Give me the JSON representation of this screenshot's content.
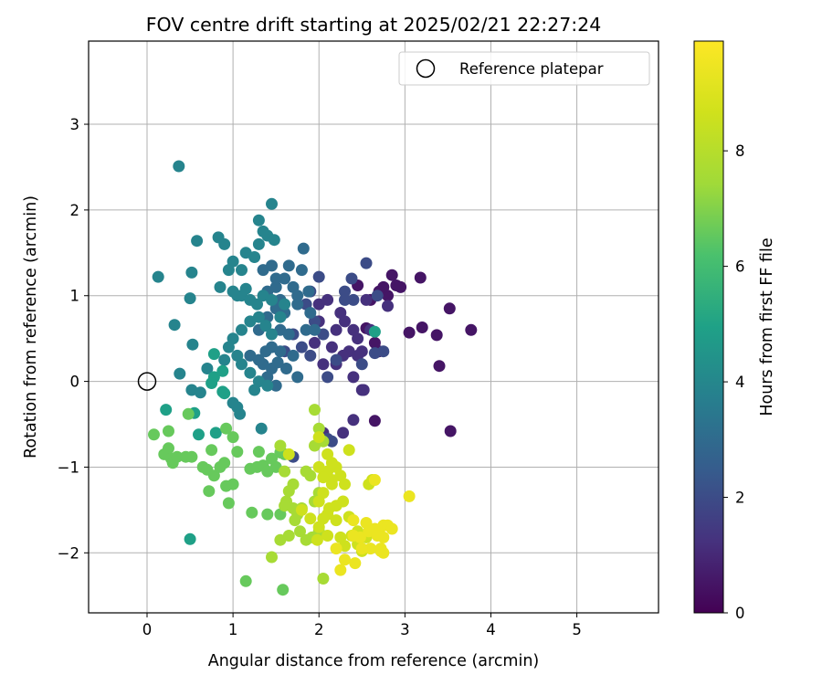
{
  "chart_data": {
    "type": "scatter",
    "title": "FOV centre drift starting at 2025/02/21 22:27:24",
    "xlabel": "Angular distance from reference (arcmin)",
    "ylabel": "Rotation from reference (arcmin)",
    "xlim": [
      -0.68,
      5.95
    ],
    "ylim": [
      -2.7,
      3.97
    ],
    "xticks": [
      0,
      1,
      2,
      3,
      4,
      5
    ],
    "yticks": [
      -2,
      -1,
      0,
      1,
      2,
      3
    ],
    "grid": true,
    "legend": {
      "placement": "top-right",
      "entries": [
        "Reference platepar"
      ]
    },
    "reference_point": {
      "x": 0,
      "y": 0
    },
    "colorbar": {
      "label": "Hours from first FF file",
      "colormap": "viridis",
      "range": [
        0,
        9.9
      ],
      "ticks": [
        0,
        2,
        4,
        6,
        8
      ]
    },
    "series": [
      {
        "time_hours": 0.5,
        "points": [
          [
            3.18,
            1.21
          ],
          [
            2.95,
            1.1
          ],
          [
            2.85,
            1.24
          ],
          [
            3.05,
            0.57
          ],
          [
            3.2,
            0.63
          ],
          [
            3.37,
            0.54
          ],
          [
            3.52,
            0.85
          ],
          [
            3.77,
            0.6
          ],
          [
            3.4,
            0.18
          ],
          [
            3.53,
            -0.58
          ],
          [
            2.65,
            -0.46
          ],
          [
            2.55,
            0.62
          ],
          [
            2.7,
            0.35
          ],
          [
            2.8,
            1.0
          ],
          [
            2.9,
            1.12
          ],
          [
            2.75,
            1.1
          ],
          [
            2.6,
            0.95
          ],
          [
            2.7,
            1.05
          ],
          [
            2.45,
            1.12
          ],
          [
            2.65,
            0.45
          ]
        ]
      },
      {
        "time_hours": 1.2,
        "points": [
          [
            2.0,
            0.9
          ],
          [
            2.1,
            0.95
          ],
          [
            2.25,
            0.8
          ],
          [
            2.2,
            0.6
          ],
          [
            2.3,
            0.7
          ],
          [
            2.45,
            0.5
          ],
          [
            2.5,
            0.35
          ],
          [
            2.4,
            0.6
          ],
          [
            2.35,
            0.35
          ],
          [
            2.55,
            0.95
          ],
          [
            2.6,
            0.6
          ],
          [
            2.15,
            0.4
          ],
          [
            2.0,
            0.7
          ],
          [
            1.95,
            0.45
          ],
          [
            2.05,
            0.2
          ],
          [
            2.2,
            0.2
          ],
          [
            2.28,
            0.3
          ],
          [
            2.4,
            0.05
          ],
          [
            2.5,
            -0.1
          ],
          [
            2.05,
            -0.6
          ],
          [
            2.28,
            -0.6
          ],
          [
            2.4,
            -0.45
          ],
          [
            2.52,
            -0.1
          ],
          [
            2.45,
            0.3
          ],
          [
            2.8,
            0.88
          ]
        ]
      },
      {
        "time_hours": 2.0,
        "points": [
          [
            2.15,
            -0.7
          ],
          [
            2.1,
            -0.67
          ],
          [
            2.38,
            1.2
          ],
          [
            2.55,
            1.38
          ],
          [
            2.68,
            1.0
          ],
          [
            2.3,
            1.05
          ],
          [
            2.4,
            0.95
          ],
          [
            2.0,
            1.22
          ],
          [
            1.9,
            1.05
          ],
          [
            1.85,
            0.9
          ],
          [
            1.7,
            0.55
          ],
          [
            1.8,
            0.4
          ],
          [
            1.6,
            0.35
          ],
          [
            1.95,
            0.7
          ],
          [
            2.05,
            0.55
          ],
          [
            2.2,
            0.25
          ],
          [
            2.1,
            0.05
          ],
          [
            2.3,
            0.95
          ],
          [
            1.7,
            -0.88
          ],
          [
            2.65,
            0.33
          ],
          [
            2.5,
            0.2
          ],
          [
            1.9,
            0.3
          ],
          [
            2.75,
            0.35
          ]
        ]
      },
      {
        "time_hours": 3.0,
        "points": [
          [
            1.4,
            1.05
          ],
          [
            1.5,
            1.1
          ],
          [
            1.55,
            0.95
          ],
          [
            1.6,
            1.2
          ],
          [
            1.7,
            1.1
          ],
          [
            1.8,
            1.3
          ],
          [
            1.75,
            1.0
          ],
          [
            1.5,
            0.85
          ],
          [
            1.4,
            0.75
          ],
          [
            1.6,
            0.8
          ],
          [
            1.55,
            0.6
          ],
          [
            1.3,
            0.6
          ],
          [
            1.7,
            0.3
          ],
          [
            1.85,
            0.6
          ],
          [
            1.65,
            0.55
          ],
          [
            1.45,
            0.4
          ],
          [
            1.55,
            0.35
          ],
          [
            1.75,
            0.05
          ],
          [
            1.35,
            0.2
          ],
          [
            1.4,
            0.05
          ],
          [
            1.2,
            0.3
          ],
          [
            1.3,
            0.25
          ],
          [
            1.45,
            0.15
          ],
          [
            1.5,
            -0.05
          ],
          [
            1.62,
            0.15
          ],
          [
            1.38,
            0.35
          ],
          [
            1.52,
            0.22
          ],
          [
            1.35,
            1.3
          ],
          [
            1.45,
            1.35
          ],
          [
            1.5,
            1.2
          ],
          [
            1.65,
            1.35
          ],
          [
            1.82,
            1.55
          ],
          [
            1.75,
            0.9
          ],
          [
            1.9,
            0.8
          ],
          [
            1.88,
            1.05
          ],
          [
            1.95,
            0.6
          ]
        ]
      },
      {
        "time_hours": 3.9,
        "points": [
          [
            0.37,
            2.51
          ],
          [
            1.45,
            2.07
          ],
          [
            1.3,
            1.88
          ],
          [
            1.4,
            1.7
          ],
          [
            1.48,
            1.65
          ],
          [
            1.3,
            1.6
          ],
          [
            1.35,
            1.75
          ],
          [
            1.25,
            1.45
          ],
          [
            1.15,
            1.5
          ],
          [
            1.1,
            1.3
          ],
          [
            1.0,
            1.4
          ],
          [
            0.9,
            1.6
          ],
          [
            0.83,
            1.68
          ],
          [
            0.95,
            1.3
          ],
          [
            0.85,
            1.1
          ],
          [
            1.0,
            1.05
          ],
          [
            1.05,
            1.0
          ],
          [
            1.1,
            1.0
          ],
          [
            1.15,
            1.08
          ],
          [
            1.2,
            0.95
          ],
          [
            1.28,
            0.9
          ],
          [
            1.35,
            1.0
          ],
          [
            1.3,
            0.75
          ],
          [
            1.2,
            0.7
          ],
          [
            1.1,
            0.6
          ],
          [
            1.0,
            0.5
          ],
          [
            0.95,
            0.4
          ],
          [
            0.9,
            0.25
          ],
          [
            1.05,
            0.3
          ],
          [
            1.1,
            0.2
          ],
          [
            1.2,
            0.1
          ],
          [
            1.3,
            0.0
          ],
          [
            1.25,
            -0.1
          ],
          [
            1.4,
            -0.05
          ],
          [
            1.38,
            0.65
          ],
          [
            1.45,
            0.55
          ],
          [
            0.58,
            1.64
          ],
          [
            0.13,
            1.22
          ],
          [
            0.52,
            1.27
          ],
          [
            0.5,
            0.97
          ],
          [
            0.32,
            0.66
          ],
          [
            0.53,
            0.43
          ],
          [
            0.38,
            0.09
          ],
          [
            0.52,
            -0.1
          ],
          [
            0.62,
            -0.13
          ],
          [
            0.7,
            0.15
          ],
          [
            1.0,
            -0.25
          ],
          [
            1.05,
            -0.3
          ],
          [
            1.08,
            -0.38
          ],
          [
            1.33,
            -0.55
          ],
          [
            1.45,
            0.95
          ],
          [
            1.55,
            0.75
          ],
          [
            1.6,
            0.9
          ]
        ]
      },
      {
        "time_hours": 4.9,
        "points": [
          [
            0.22,
            -0.33
          ],
          [
            0.78,
            0.32
          ],
          [
            0.78,
            0.05
          ],
          [
            0.75,
            -0.02
          ],
          [
            0.88,
            0.12
          ],
          [
            0.88,
            -0.12
          ],
          [
            0.9,
            -0.14
          ],
          [
            2.65,
            0.58
          ],
          [
            0.5,
            -1.84
          ],
          [
            0.55,
            -0.37
          ],
          [
            0.6,
            -0.62
          ],
          [
            0.8,
            -0.6
          ]
        ]
      },
      {
        "time_hours": 6.6,
        "points": [
          [
            0.08,
            -0.62
          ],
          [
            0.25,
            -0.58
          ],
          [
            0.2,
            -0.85
          ],
          [
            0.25,
            -0.78
          ],
          [
            0.28,
            -0.9
          ],
          [
            0.3,
            -0.95
          ],
          [
            0.35,
            -0.88
          ],
          [
            0.45,
            -0.88
          ],
          [
            0.52,
            -0.88
          ],
          [
            0.48,
            -0.38
          ],
          [
            0.65,
            -1.0
          ],
          [
            0.7,
            -1.03
          ],
          [
            0.72,
            -1.28
          ],
          [
            0.75,
            -0.8
          ],
          [
            0.78,
            -1.1
          ],
          [
            0.85,
            -1.0
          ],
          [
            0.9,
            -0.95
          ],
          [
            0.92,
            -1.22
          ],
          [
            0.95,
            -1.42
          ],
          [
            1.0,
            -1.2
          ],
          [
            1.05,
            -0.82
          ],
          [
            1.0,
            -0.65
          ],
          [
            0.92,
            -0.55
          ],
          [
            1.2,
            -1.02
          ],
          [
            1.22,
            -1.53
          ],
          [
            1.28,
            -1.0
          ],
          [
            1.3,
            -0.82
          ],
          [
            1.35,
            -0.98
          ],
          [
            1.4,
            -1.05
          ],
          [
            1.45,
            -0.9
          ],
          [
            1.5,
            -1.0
          ],
          [
            1.55,
            -0.83
          ],
          [
            1.6,
            -0.85
          ],
          [
            1.15,
            -2.33
          ],
          [
            1.4,
            -1.55
          ],
          [
            1.55,
            -1.55
          ],
          [
            1.58,
            -2.43
          ]
        ]
      },
      {
        "time_hours": 7.6,
        "points": [
          [
            1.6,
            -1.05
          ],
          [
            1.7,
            -1.2
          ],
          [
            1.65,
            -1.28
          ],
          [
            1.62,
            -1.4
          ],
          [
            1.7,
            -1.48
          ],
          [
            1.75,
            -1.55
          ],
          [
            1.72,
            -1.62
          ],
          [
            1.78,
            -1.75
          ],
          [
            1.8,
            -1.48
          ],
          [
            1.9,
            -1.1
          ],
          [
            1.95,
            -1.4
          ],
          [
            2.0,
            -1.3
          ],
          [
            1.55,
            -1.85
          ],
          [
            1.45,
            -2.05
          ],
          [
            1.85,
            -1.05
          ],
          [
            1.95,
            -0.75
          ],
          [
            1.6,
            -1.45
          ],
          [
            1.85,
            -1.85
          ],
          [
            2.05,
            -2.3
          ],
          [
            2.0,
            -1.75
          ],
          [
            1.92,
            -1.82
          ],
          [
            1.55,
            -0.75
          ],
          [
            1.95,
            -0.33
          ],
          [
            2.0,
            -0.55
          ],
          [
            2.05,
            -0.7
          ],
          [
            1.65,
            -1.8
          ]
        ]
      },
      {
        "time_hours": 8.6,
        "points": [
          [
            2.1,
            -1.05
          ],
          [
            2.15,
            -1.15
          ],
          [
            2.2,
            -1.0
          ],
          [
            2.25,
            -1.1
          ],
          [
            2.3,
            -1.2
          ],
          [
            2.28,
            -1.4
          ],
          [
            2.2,
            -1.45
          ],
          [
            2.1,
            -1.55
          ],
          [
            2.05,
            -1.6
          ],
          [
            2.0,
            -1.7
          ],
          [
            2.1,
            -1.8
          ],
          [
            2.25,
            -1.82
          ],
          [
            2.3,
            -1.92
          ],
          [
            2.38,
            -1.8
          ],
          [
            2.45,
            -1.9
          ],
          [
            2.55,
            -1.82
          ],
          [
            2.1,
            -0.85
          ],
          [
            2.0,
            -0.65
          ],
          [
            2.35,
            -0.8
          ],
          [
            2.15,
            -0.95
          ],
          [
            2.05,
            -1.3
          ],
          [
            2.15,
            -1.2
          ],
          [
            2.12,
            -1.48
          ],
          [
            1.9,
            -1.6
          ],
          [
            1.8,
            -1.5
          ],
          [
            2.0,
            -1.4
          ],
          [
            2.2,
            -1.62
          ],
          [
            2.35,
            -1.58
          ],
          [
            2.45,
            -1.75
          ],
          [
            1.98,
            -1.85
          ],
          [
            1.65,
            -0.85
          ],
          [
            2.0,
            -1.0
          ],
          [
            2.05,
            -1.12
          ],
          [
            2.58,
            -1.2
          ],
          [
            2.5,
            -1.98
          ],
          [
            2.62,
            -1.15
          ]
        ]
      },
      {
        "time_hours": 9.4,
        "points": [
          [
            2.4,
            -1.62
          ],
          [
            2.55,
            -1.65
          ],
          [
            2.7,
            -1.75
          ],
          [
            2.75,
            -1.68
          ],
          [
            2.8,
            -1.68
          ],
          [
            2.6,
            -1.95
          ],
          [
            2.72,
            -1.98
          ],
          [
            2.75,
            -2.0
          ],
          [
            2.5,
            -1.95
          ],
          [
            2.42,
            -2.12
          ],
          [
            2.25,
            -2.2
          ],
          [
            2.2,
            -1.95
          ],
          [
            2.48,
            -1.82
          ],
          [
            2.65,
            -1.72
          ],
          [
            2.75,
            -1.82
          ],
          [
            3.05,
            -1.34
          ],
          [
            2.65,
            -1.15
          ],
          [
            2.58,
            -1.75
          ],
          [
            2.3,
            -2.08
          ],
          [
            2.4,
            -1.8
          ],
          [
            2.68,
            -1.8
          ],
          [
            2.85,
            -1.72
          ],
          [
            2.72,
            -1.95
          ]
        ]
      }
    ]
  }
}
